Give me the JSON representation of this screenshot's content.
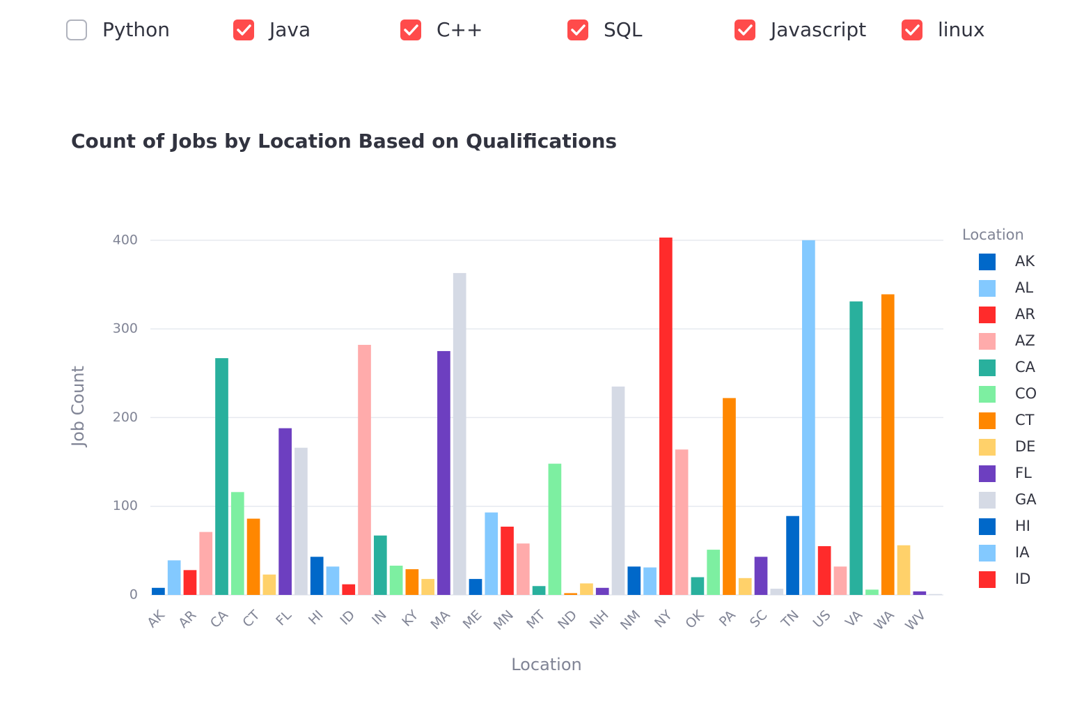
{
  "checkboxes": [
    {
      "label": "Python",
      "checked": false
    },
    {
      "label": "Java",
      "checked": true
    },
    {
      "label": "C++",
      "checked": true
    },
    {
      "label": "SQL",
      "checked": true
    },
    {
      "label": "Javascript",
      "checked": true
    },
    {
      "label": "linux",
      "checked": true
    }
  ],
  "chart_data": {
    "type": "bar",
    "title": "Count of Jobs by Location Based on Qualifications",
    "x_label": "Location",
    "y_label": "Job Count",
    "categories": [
      "AK",
      null,
      "AR",
      null,
      "CA",
      null,
      "CT",
      null,
      "FL",
      null,
      "HI",
      null,
      "ID",
      null,
      "IN",
      null,
      "KY",
      null,
      "MA",
      null,
      "ME",
      null,
      "MN",
      null,
      "MT",
      null,
      "ND",
      null,
      "NH",
      null,
      "NM",
      null,
      "NY",
      null,
      "OK",
      null,
      "PA",
      null,
      "SC",
      null,
      "TN",
      null,
      "US",
      null,
      "VA",
      null,
      "WA",
      null,
      "WV",
      null
    ],
    "values": [
      8,
      39,
      28,
      71,
      267,
      116,
      86,
      23,
      188,
      166,
      43,
      32,
      12,
      282,
      67,
      33,
      29,
      18,
      275,
      363,
      18,
      93,
      77,
      58,
      10,
      148,
      2,
      13,
      8,
      235,
      32,
      31,
      403,
      164,
      20,
      51,
      222,
      19,
      43,
      7,
      89,
      400,
      55,
      32,
      331,
      6,
      339,
      56,
      4,
      1
    ],
    "palette": [
      "#0068c9",
      "#83c9ff",
      "#ff2b2b",
      "#ffabab",
      "#29b09d",
      "#7defa1",
      "#ff8700",
      "#ffd16a",
      "#6d3fc0",
      "#d5dae5"
    ],
    "ylim": [
      0,
      425
    ],
    "yticks": [
      0,
      100,
      200,
      300,
      400
    ],
    "grid": true,
    "legend": {
      "title": "Location",
      "position": "right",
      "items": [
        "AK",
        "AL",
        "AR",
        "AZ",
        "CA",
        "CO",
        "CT",
        "DE",
        "FL",
        "GA",
        "HI",
        "IA",
        "ID"
      ]
    }
  }
}
